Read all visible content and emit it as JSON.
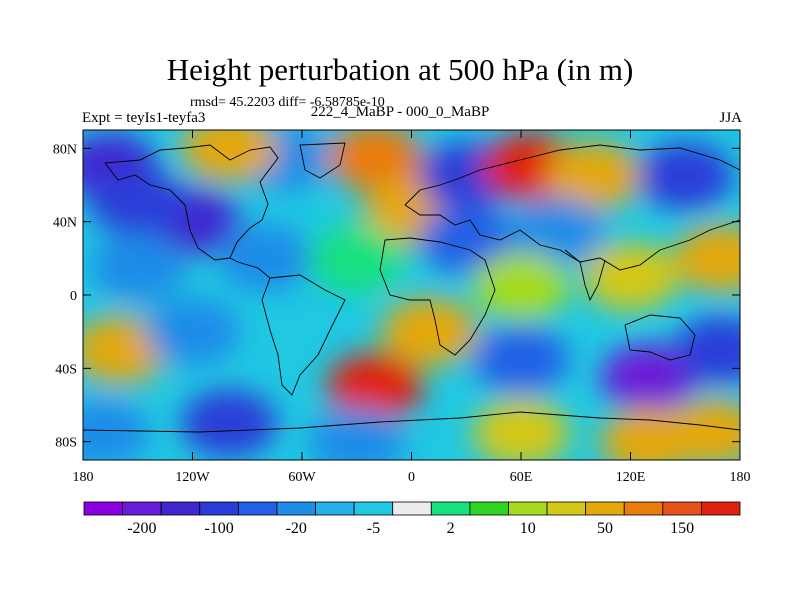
{
  "title": "Height perturbation at 500 hPa (in m)",
  "stats": "rmsd= 45.2203 diff= -6.58785e-10",
  "experiment": "Expt = teyIs1-teyfa3",
  "case_label": "222_4_MaBP - 000_0_MaBP",
  "season": "JJA",
  "lat_ticks": [
    {
      "value": 80,
      "label": "80N"
    },
    {
      "value": 40,
      "label": "40N"
    },
    {
      "value": 0,
      "label": "0"
    },
    {
      "value": -40,
      "label": "40S"
    },
    {
      "value": -80,
      "label": "80S"
    }
  ],
  "lon_ticks": [
    {
      "value": -180,
      "label": "180"
    },
    {
      "value": -120,
      "label": "120W"
    },
    {
      "value": -60,
      "label": "60W"
    },
    {
      "value": 0,
      "label": "0"
    },
    {
      "value": 60,
      "label": "60E"
    },
    {
      "value": 120,
      "label": "120E"
    },
    {
      "value": 180,
      "label": "180"
    }
  ],
  "colorbar": {
    "colors": [
      "#8a00e0",
      "#6a1cd8",
      "#4028d0",
      "#2a3cd8",
      "#2460e6",
      "#1f8ce8",
      "#24b0e8",
      "#20c8e2",
      "#ececec",
      "#18e080",
      "#2ed424",
      "#a6dc1e",
      "#d4c818",
      "#e4a80c",
      "#ea7c0a",
      "#e8501a",
      "#e02010"
    ],
    "labels": [
      {
        "after_bin": 1,
        "text": "-200"
      },
      {
        "after_bin": 3,
        "text": "-100"
      },
      {
        "after_bin": 5,
        "text": "-20"
      },
      {
        "after_bin": 7,
        "text": "-5"
      },
      {
        "after_bin": 9,
        "text": "2"
      },
      {
        "after_bin": 11,
        "text": "10"
      },
      {
        "after_bin": 13,
        "text": "50"
      },
      {
        "after_bin": 15,
        "text": "150"
      }
    ]
  },
  "field_centers": [
    {
      "lon": -165,
      "lat": 70,
      "level": 2
    },
    {
      "lon": -120,
      "lat": 40,
      "level": 2
    },
    {
      "lon": -150,
      "lat": 50,
      "level": 3
    },
    {
      "lon": -70,
      "lat": 75,
      "level": 5
    },
    {
      "lon": -100,
      "lat": 80,
      "level": 13
    },
    {
      "lon": -20,
      "lat": 75,
      "level": 14
    },
    {
      "lon": 0,
      "lat": 45,
      "level": 13
    },
    {
      "lon": 30,
      "lat": 65,
      "level": 3
    },
    {
      "lon": 65,
      "lat": 70,
      "level": 16
    },
    {
      "lon": 100,
      "lat": 65,
      "level": 13
    },
    {
      "lon": 150,
      "lat": 65,
      "level": 3
    },
    {
      "lon": -150,
      "lat": 15,
      "level": 5
    },
    {
      "lon": -80,
      "lat": 20,
      "level": 5
    },
    {
      "lon": -30,
      "lat": 20,
      "level": 9
    },
    {
      "lon": 30,
      "lat": 30,
      "level": 4
    },
    {
      "lon": 80,
      "lat": 35,
      "level": 5
    },
    {
      "lon": 60,
      "lat": 5,
      "level": 11
    },
    {
      "lon": 120,
      "lat": 10,
      "level": 12
    },
    {
      "lon": 170,
      "lat": 20,
      "level": 13
    },
    {
      "lon": -160,
      "lat": -30,
      "level": 13
    },
    {
      "lon": -120,
      "lat": -20,
      "level": 5
    },
    {
      "lon": -20,
      "lat": -50,
      "level": 16
    },
    {
      "lon": 10,
      "lat": -20,
      "level": 13
    },
    {
      "lon": 60,
      "lat": -35,
      "level": 4
    },
    {
      "lon": 130,
      "lat": -45,
      "level": 1
    },
    {
      "lon": 170,
      "lat": -30,
      "level": 3
    },
    {
      "lon": -100,
      "lat": -70,
      "level": 3
    },
    {
      "lon": -30,
      "lat": -80,
      "level": 5
    },
    {
      "lon": 60,
      "lat": -75,
      "level": 12
    },
    {
      "lon": 130,
      "lat": -80,
      "level": 13
    },
    {
      "lon": 165,
      "lat": -75,
      "level": 13
    },
    {
      "lon": -170,
      "lat": -75,
      "level": 5
    }
  ]
}
